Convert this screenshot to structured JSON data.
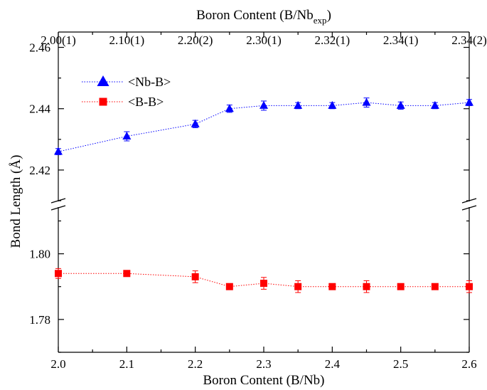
{
  "chart_data": {
    "type": "line",
    "xlabel": "Boron Content (B/Nb)",
    "x2label_main": "Boron Content (B/Nb",
    "x2label_sub": "exp",
    "x2label_close": ")",
    "ylabel": "Bond  Length (Å)",
    "xlim": [
      2.0,
      2.6
    ],
    "x_ticks": [
      2.0,
      2.1,
      2.2,
      2.3,
      2.4,
      2.5,
      2.6
    ],
    "x_tick_labels": [
      "2.0",
      "2.1",
      "2.2",
      "2.3",
      "2.4",
      "2.5",
      "2.6"
    ],
    "top_ticks": [
      2.0,
      2.1,
      2.2,
      2.3,
      2.4,
      2.5,
      2.6
    ],
    "top_tick_labels": [
      "2.00(1)",
      "2.10(1)",
      "2.20(2)",
      "2.30(1)",
      "2.32(1)",
      "2.34(1)",
      "2.34(2)"
    ],
    "y_upper": {
      "ylim": [
        2.41,
        2.465
      ],
      "ticks": [
        2.42,
        2.44,
        2.46
      ],
      "tick_labels": [
        "2.42",
        "2.44",
        "2.46"
      ]
    },
    "y_lower": {
      "ylim": [
        1.77,
        1.814
      ],
      "ticks": [
        1.78,
        1.8
      ],
      "tick_labels": [
        "1.78",
        "1.80"
      ]
    },
    "axis_break": true,
    "legend_position": "top-left",
    "series": [
      {
        "name": "<Nb-B>",
        "panel": "upper",
        "color": "#0000ff",
        "marker": "triangle",
        "x": [
          2.0,
          2.1,
          2.2,
          2.25,
          2.3,
          2.35,
          2.4,
          2.45,
          2.5,
          2.55,
          2.6
        ],
        "values": [
          2.426,
          2.431,
          2.435,
          2.44,
          2.441,
          2.441,
          2.441,
          2.442,
          2.441,
          2.441,
          2.442
        ],
        "errors": [
          0.001,
          0.0015,
          0.0012,
          0.0012,
          0.0015,
          0.001,
          0.001,
          0.0015,
          0.0012,
          0.001,
          0.001
        ]
      },
      {
        "name": "<B-B>",
        "panel": "lower",
        "color": "#ff0000",
        "marker": "square",
        "x": [
          2.0,
          2.1,
          2.2,
          2.25,
          2.3,
          2.35,
          2.4,
          2.45,
          2.5,
          2.55,
          2.6
        ],
        "values": [
          1.794,
          1.794,
          1.793,
          1.79,
          1.791,
          1.79,
          1.79,
          1.79,
          1.79,
          1.79,
          1.79
        ],
        "errors": [
          0.0015,
          0.0008,
          0.0018,
          0.0008,
          0.0018,
          0.0018,
          0.0008,
          0.0018,
          0.0008,
          0.0008,
          0.0018
        ]
      }
    ]
  }
}
